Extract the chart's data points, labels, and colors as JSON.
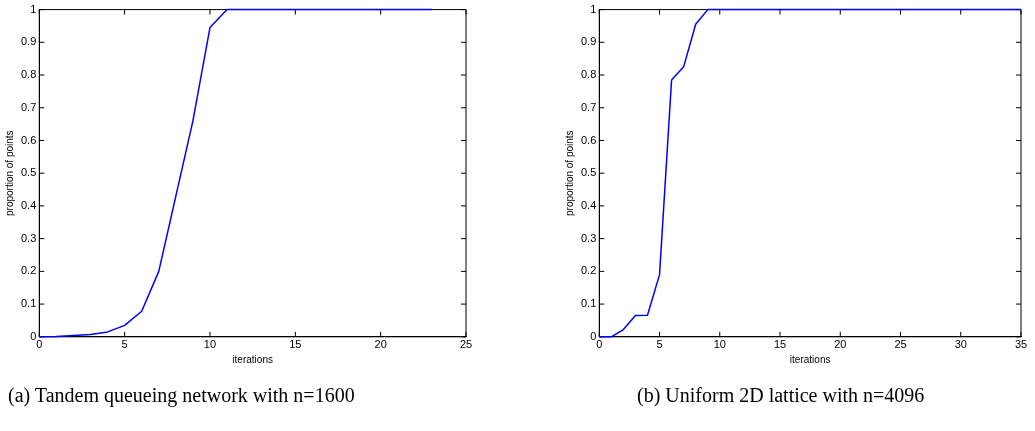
{
  "chart_data": [
    {
      "type": "line",
      "xlabel": "iterations",
      "ylabel": "proportion of points",
      "annotations": [
        "(a)  Tandem queueing network with n=1600"
      ],
      "x": [
        0,
        1,
        2,
        3,
        4,
        5,
        6,
        7,
        8,
        9,
        10,
        11,
        12,
        13,
        14,
        15,
        16,
        17,
        18,
        19,
        20,
        21,
        22,
        23
      ],
      "series": [
        {
          "color": "#0000ff",
          "values": [
            0,
            0.001,
            0.004,
            0.007,
            0.015,
            0.035,
            0.078,
            0.2,
            0.43,
            0.66,
            0.945,
            1,
            1,
            1,
            1,
            1,
            1,
            1,
            1,
            1,
            1,
            1,
            1,
            1
          ]
        }
      ],
      "xlim": [
        0,
        25
      ],
      "xticks": [
        0,
        5,
        10,
        15,
        20,
        25
      ],
      "ylim": [
        0,
        1
      ],
      "yticks": [
        0,
        0.1,
        0.2,
        0.3,
        0.4,
        0.5,
        0.6,
        0.7,
        0.8,
        0.9,
        1
      ],
      "grid": false,
      "legend": false,
      "marker": "none",
      "line_style": "solid"
    },
    {
      "type": "line",
      "xlabel": "iterations",
      "ylabel": "proportion of points",
      "annotations": [
        "(b)  Uniform 2D lattice with n=4096"
      ],
      "x": [
        0,
        1,
        2,
        3,
        4,
        5,
        6,
        7,
        8,
        9,
        10,
        11,
        12,
        13,
        14,
        15,
        16,
        17,
        18,
        19,
        20,
        21,
        22,
        23,
        24,
        25,
        26,
        27,
        28,
        29,
        30,
        31,
        32,
        33,
        34,
        35
      ],
      "series": [
        {
          "color": "#0000ff",
          "values": [
            0,
            0,
            0.022,
            0.065,
            0.066,
            0.19,
            0.785,
            0.825,
            0.955,
            1,
            1,
            1,
            1,
            1,
            1,
            1,
            1,
            1,
            1,
            1,
            1,
            1,
            1,
            1,
            1,
            1,
            1,
            1,
            1,
            1,
            1,
            1,
            1,
            1,
            1,
            1
          ]
        }
      ],
      "xlim": [
        0,
        35
      ],
      "xticks": [
        0,
        5,
        10,
        15,
        20,
        25,
        30,
        35
      ],
      "ylim": [
        0,
        1
      ],
      "yticks": [
        0,
        0.1,
        0.2,
        0.3,
        0.4,
        0.5,
        0.6,
        0.7,
        0.8,
        0.9,
        1
      ],
      "grid": false,
      "legend": false,
      "marker": "none",
      "line_style": "solid"
    }
  ]
}
